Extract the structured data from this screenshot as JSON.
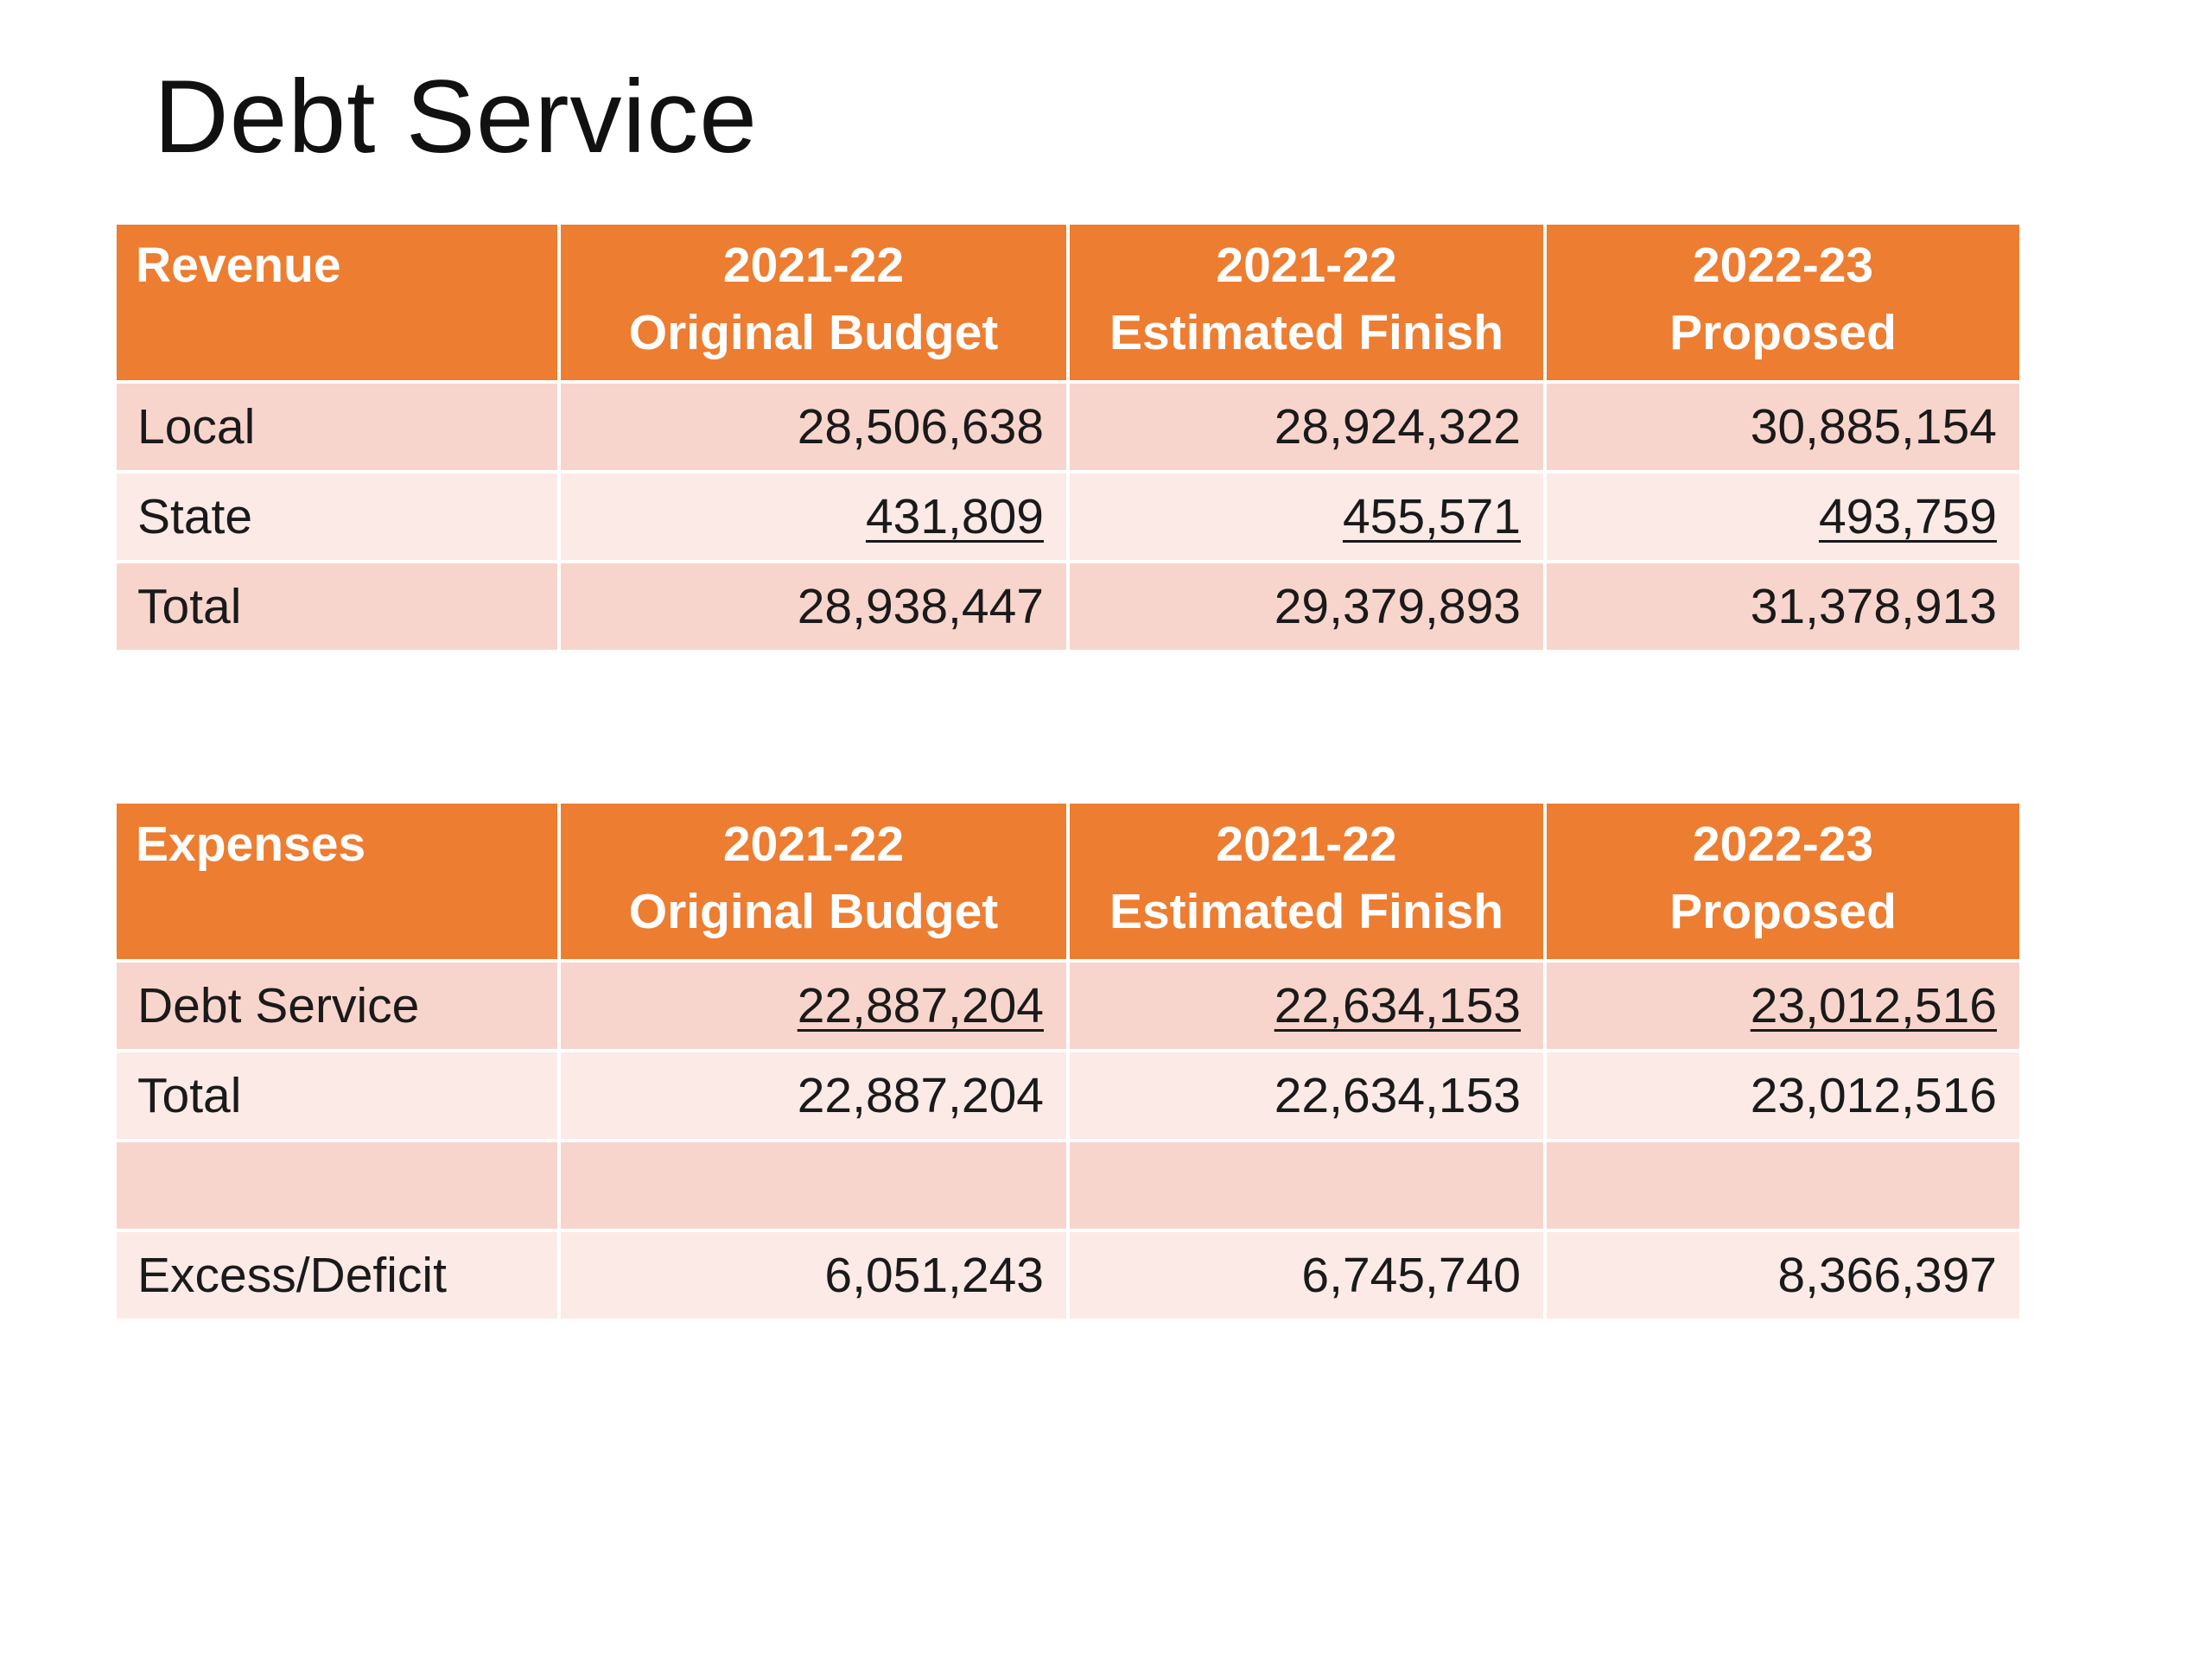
{
  "title": "Debt Service",
  "columns": {
    "original": [
      "2021-22",
      "Original Budget"
    ],
    "estimated": [
      "2021-22",
      "Estimated Finish"
    ],
    "proposed": [
      "2022-23",
      "Proposed"
    ]
  },
  "revenue": {
    "heading": "Revenue",
    "rows": [
      {
        "label": "Local",
        "original": "28,506,638",
        "estimated": "28,924,322",
        "proposed": "30,885,154",
        "underline": false
      },
      {
        "label": "State",
        "original": "431,809",
        "estimated": "455,571",
        "proposed": "493,759",
        "underline": true
      },
      {
        "label": "Total",
        "original": "28,938,447",
        "estimated": "29,379,893",
        "proposed": "31,378,913",
        "underline": false
      }
    ]
  },
  "expenses": {
    "heading": "Expenses",
    "rows": [
      {
        "label": "Debt Service",
        "original": "22,887,204",
        "estimated": "22,634,153",
        "proposed": "23,012,516",
        "underline": true
      },
      {
        "label": "Total",
        "original": "22,887,204",
        "estimated": "22,634,153",
        "proposed": "23,012,516",
        "underline": false
      },
      {
        "label": "",
        "original": "",
        "estimated": "",
        "proposed": "",
        "underline": false
      },
      {
        "label": "Excess/Deficit",
        "original": "6,051,243",
        "estimated": "6,745,740",
        "proposed": "8,366,397",
        "underline": false
      }
    ]
  }
}
